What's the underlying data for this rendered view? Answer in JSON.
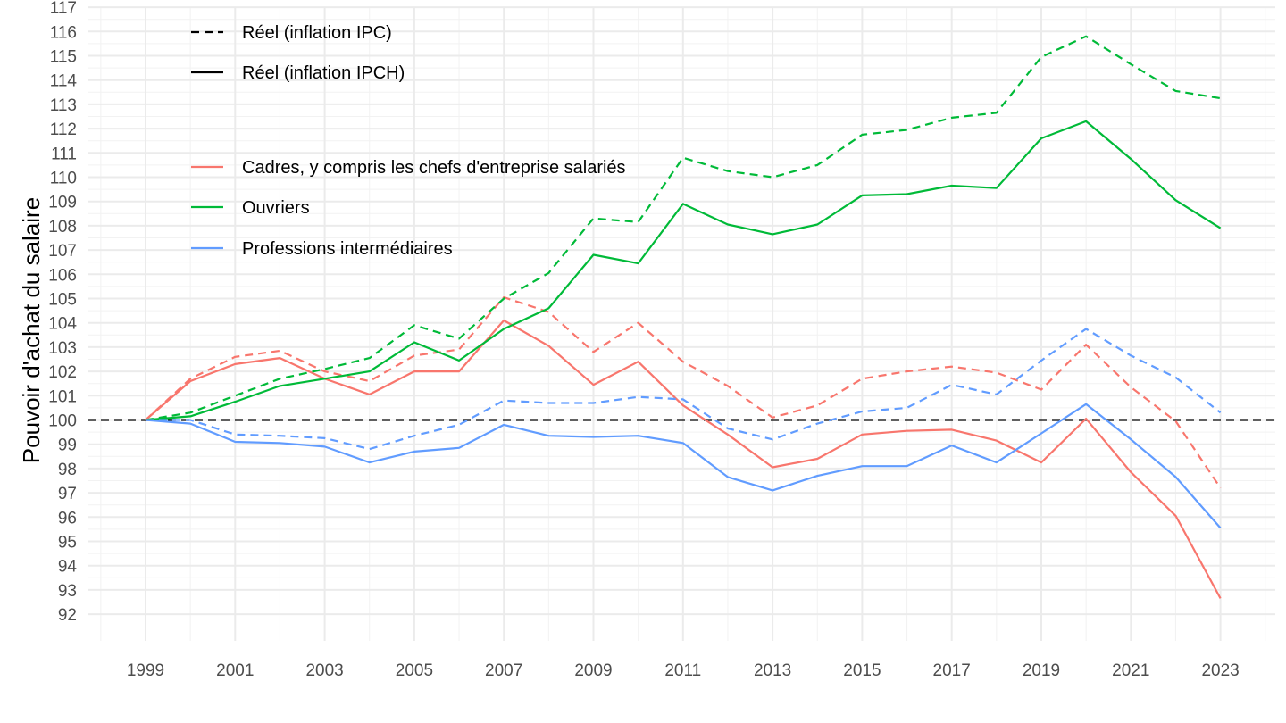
{
  "chart_data": {
    "type": "line",
    "title": "",
    "xlabel": "",
    "ylabel": "Pouvoir d'achat du salaire",
    "x": [
      1999,
      2000,
      2001,
      2002,
      2003,
      2004,
      2005,
      2006,
      2007,
      2008,
      2009,
      2010,
      2011,
      2012,
      2013,
      2014,
      2015,
      2016,
      2017,
      2018,
      2019,
      2020,
      2021,
      2022,
      2023
    ],
    "xlim": [
      1998,
      2024
    ],
    "x_ticks": [
      "1999",
      "2001",
      "2003",
      "2005",
      "2007",
      "2009",
      "2011",
      "2013",
      "2015",
      "2017",
      "2019",
      "2021",
      "2023"
    ],
    "ylim": [
      91.8,
      117.2
    ],
    "y_ticks": [
      "92",
      "93",
      "94",
      "95",
      "96",
      "97",
      "98",
      "99",
      "100",
      "101",
      "102",
      "103",
      "104",
      "105",
      "106",
      "107",
      "108",
      "109",
      "110",
      "111",
      "112",
      "113",
      "114",
      "115",
      "116",
      "117"
    ],
    "grid": true,
    "reference_line": {
      "y": 100,
      "style": "dashed",
      "color": "#000000"
    },
    "legend_position": "top-left",
    "legend_linetype": [
      {
        "label": "Réel (inflation IPC)",
        "style": "dashed"
      },
      {
        "label": "Réel (inflation IPCH)",
        "style": "solid"
      }
    ],
    "legend_color": [
      {
        "label": "Cadres, y compris les chefs d'entreprise salariés",
        "color": "#F8766D"
      },
      {
        "label": "Ouvriers",
        "color": "#00BA38"
      },
      {
        "label": "Professions intermédiaires",
        "color": "#619CFF"
      }
    ],
    "series": [
      {
        "name": "Cadres, y compris les chefs d'entreprise salariés",
        "inflation": "IPC",
        "style": "dashed",
        "color": "#F8766D",
        "values": [
          100.0,
          101.7,
          102.6,
          102.85,
          102.0,
          101.6,
          102.65,
          102.9,
          105.05,
          104.45,
          102.8,
          104.0,
          102.4,
          101.4,
          100.1,
          100.6,
          101.7,
          102.0,
          102.2,
          101.95,
          101.25,
          103.1,
          101.35,
          99.95,
          97.2
        ]
      },
      {
        "name": "Cadres, y compris les chefs d'entreprise salariés",
        "inflation": "IPCH",
        "style": "solid",
        "color": "#F8766D",
        "values": [
          100.0,
          101.6,
          102.3,
          102.55,
          101.7,
          101.05,
          102.0,
          102.0,
          104.1,
          103.05,
          101.45,
          102.4,
          100.6,
          99.4,
          98.05,
          98.4,
          99.4,
          99.55,
          99.6,
          99.15,
          98.25,
          100.05,
          97.85,
          96.05,
          92.65
        ]
      },
      {
        "name": "Ouvriers",
        "inflation": "IPC",
        "style": "dashed",
        "color": "#00BA38",
        "values": [
          100.0,
          100.3,
          101.0,
          101.7,
          102.1,
          102.55,
          103.9,
          103.35,
          105.0,
          106.05,
          108.3,
          108.15,
          110.8,
          110.25,
          110.0,
          110.5,
          111.75,
          111.95,
          112.45,
          112.65,
          114.95,
          115.8,
          114.65,
          113.55,
          113.25
        ]
      },
      {
        "name": "Ouvriers",
        "inflation": "IPCH",
        "style": "solid",
        "color": "#00BA38",
        "values": [
          100.0,
          100.15,
          100.75,
          101.4,
          101.7,
          102.0,
          103.2,
          102.45,
          103.75,
          104.6,
          106.8,
          106.45,
          108.9,
          108.05,
          107.65,
          108.05,
          109.25,
          109.3,
          109.65,
          109.55,
          111.6,
          112.3,
          110.75,
          109.05,
          107.9
        ]
      },
      {
        "name": "Professions intermédiaires",
        "inflation": "IPC",
        "style": "dashed",
        "color": "#619CFF",
        "values": [
          100.0,
          100.0,
          99.4,
          99.35,
          99.25,
          98.8,
          99.35,
          99.8,
          100.8,
          100.7,
          100.7,
          100.95,
          100.85,
          99.65,
          99.2,
          99.85,
          100.35,
          100.5,
          101.45,
          101.05,
          102.45,
          103.75,
          102.65,
          101.75,
          100.3
        ]
      },
      {
        "name": "Professions intermédiaires",
        "inflation": "IPCH",
        "style": "solid",
        "color": "#619CFF",
        "values": [
          100.0,
          99.85,
          99.1,
          99.05,
          98.9,
          98.25,
          98.7,
          98.85,
          99.8,
          99.35,
          99.3,
          99.35,
          99.05,
          97.65,
          97.1,
          97.7,
          98.1,
          98.1,
          98.95,
          98.25,
          99.45,
          100.65,
          99.2,
          97.65,
          95.55
        ]
      }
    ]
  }
}
